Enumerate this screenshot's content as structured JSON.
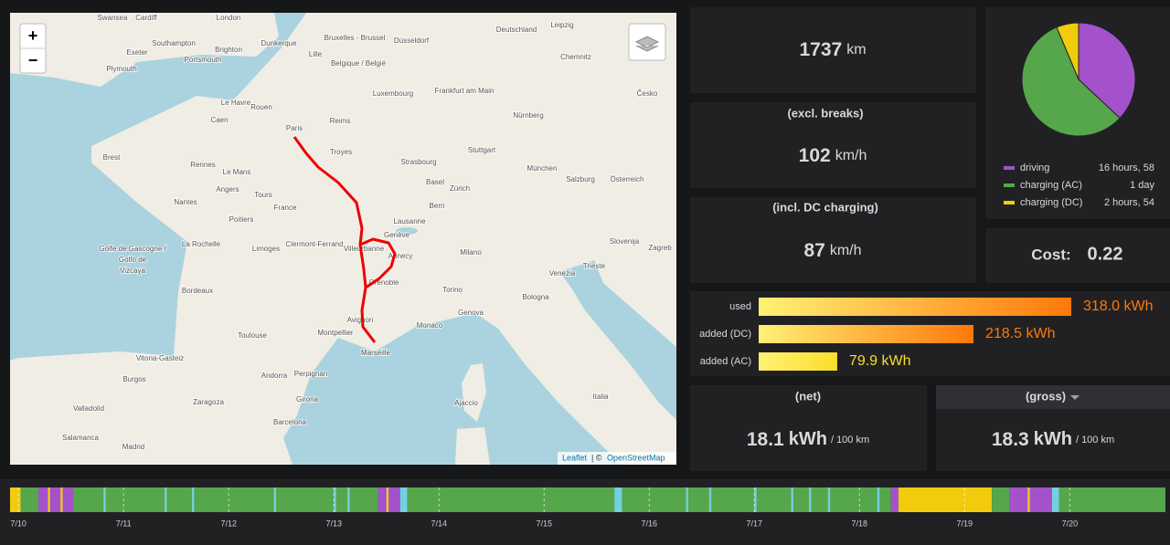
{
  "map": {
    "zoom_in": "+",
    "zoom_out": "−",
    "attribution": [
      "Leaflet",
      "| ©",
      "OpenStreetMap"
    ],
    "labels": [
      "Swansea",
      "Cardiff",
      "London",
      "Exeter",
      "Southampton",
      "Brighton",
      "Portsmouth",
      "Plymouth",
      "Dunkerque",
      "Lille",
      "Bruxelles - Brussel",
      "Belgique / België",
      "Düsseldorf",
      "Deutschland",
      "Leipzig",
      "Chemnitz",
      "Frankfurt am Main",
      "Luxembourg",
      "Nürnberg",
      "Česko",
      "Stuttgart",
      "Strasbourg",
      "München",
      "Salzburg",
      "Österreich",
      "Le Havre",
      "Rouen",
      "Caen",
      "Paris",
      "Reims",
      "Troyes",
      "Brest",
      "Rennes",
      "Le Mans",
      "Angers",
      "Nantes",
      "Tours",
      "France",
      "Basel",
      "Zürich",
      "Bern",
      "Lausanne",
      "Genève",
      "Poitiers",
      "La Rochelle",
      "Limoges",
      "Clermont-Ferrand",
      "Villeurbanne",
      "Annecy",
      "Grenoble",
      "Milano",
      "Venezia",
      "Trieste",
      "Slovenija",
      "Zagreb",
      "Bordeaux",
      "Torino",
      "Genova",
      "Bologna",
      "Toulouse",
      "Montpellier",
      "Avignon",
      "Marseille",
      "Monaco",
      "Andorra",
      "Perpignan",
      "Girona",
      "Barcelona",
      "Zaragoza",
      "Vitoria-Gasteiz",
      "Burgos",
      "Valladolid",
      "Salamanca",
      "Madrid",
      "Ajaccio",
      "Italia",
      "Golfe de Gascogne /",
      "Golfo de",
      "Vizcaya"
    ]
  },
  "stats": [
    {
      "value": 1737,
      "unit": "km"
    },
    {
      "title": "(excl. breaks)",
      "value": 102,
      "unit": "km/h"
    },
    {
      "title": "(incl. DC charging)",
      "value": 87,
      "unit": "km/h"
    }
  ],
  "cost": {
    "label": "Cost:",
    "value": 0.22
  },
  "efficiency": [
    {
      "title": "(net)",
      "value": 18.1,
      "unit": "kWh",
      "suffix": "/ 100 km"
    },
    {
      "title": "(gross)",
      "value": 18.3,
      "unit": "kWh",
      "suffix": "/ 100 km"
    }
  ],
  "chart_data": [
    {
      "type": "pie",
      "series": [
        {
          "name": "driving",
          "color": "#a352cc",
          "values": [
            16.97
          ],
          "value_labels": [
            "16 hours, 58"
          ]
        },
        {
          "name": "charging (AC)",
          "color": "#56a64b",
          "values": [
            26
          ],
          "value_labels": [
            "1 day"
          ]
        },
        {
          "name": "charging (DC)",
          "color": "#f2cc0c",
          "values": [
            2.9
          ],
          "value_labels": [
            "2 hours, 54"
          ]
        }
      ]
    },
    {
      "type": "bar",
      "categories": [
        "used",
        "added (DC)",
        "added (AC)"
      ],
      "values": [
        318.0,
        218.5,
        79.9
      ],
      "value_labels": [
        "318.0 kWh",
        "218.5 kWh",
        "79.9 kWh"
      ],
      "colors": [
        "#ff780a",
        "#ff780a",
        "#fade2a"
      ],
      "xlim": [
        0,
        318
      ]
    },
    {
      "type": "state-timeline",
      "xlim": [
        9.92,
        20.91
      ],
      "xticks": [
        {
          "value": 10,
          "label": "7/10"
        },
        {
          "value": 11,
          "label": "7/11"
        },
        {
          "value": 12,
          "label": "7/12"
        },
        {
          "value": 13,
          "label": "7/13"
        },
        {
          "value": 14,
          "label": "7/14"
        },
        {
          "value": 15,
          "label": "7/15"
        },
        {
          "value": 16,
          "label": "7/16"
        },
        {
          "value": 17,
          "label": "7/17"
        },
        {
          "value": 18,
          "label": "7/18"
        },
        {
          "value": 19,
          "label": "7/19"
        },
        {
          "value": 20,
          "label": "7/20"
        }
      ],
      "segments": [
        {
          "start": 9.92,
          "end": 10.02,
          "color": "#f2cc0c"
        },
        {
          "start": 10.02,
          "end": 10.19,
          "color": "#56a64b"
        },
        {
          "start": 10.19,
          "end": 10.52,
          "color": "#a352cc"
        },
        {
          "start": 10.28,
          "end": 10.3,
          "color": "#f2cc0c"
        },
        {
          "start": 10.4,
          "end": 10.42,
          "color": "#f2cc0c"
        },
        {
          "start": 10.52,
          "end": 13.42,
          "color": "#56a64b"
        },
        {
          "start": 10.81,
          "end": 10.83,
          "color": "#73d0e0"
        },
        {
          "start": 11.39,
          "end": 11.41,
          "color": "#73d0e0"
        },
        {
          "start": 11.65,
          "end": 11.67,
          "color": "#73d0e0"
        },
        {
          "start": 12.43,
          "end": 12.45,
          "color": "#73d0e0"
        },
        {
          "start": 13.0,
          "end": 13.02,
          "color": "#73d0e0"
        },
        {
          "start": 13.13,
          "end": 13.15,
          "color": "#73d0e0"
        },
        {
          "start": 13.42,
          "end": 13.63,
          "color": "#a352cc"
        },
        {
          "start": 13.5,
          "end": 13.52,
          "color": "#f2cc0c"
        },
        {
          "start": 13.63,
          "end": 13.7,
          "color": "#73d0e0"
        },
        {
          "start": 13.7,
          "end": 18.3,
          "color": "#56a64b"
        },
        {
          "start": 15.67,
          "end": 15.74,
          "color": "#73d0e0"
        },
        {
          "start": 16.35,
          "end": 16.37,
          "color": "#73d0e0"
        },
        {
          "start": 16.57,
          "end": 16.59,
          "color": "#73d0e0"
        },
        {
          "start": 17.0,
          "end": 17.02,
          "color": "#73d0e0"
        },
        {
          "start": 17.35,
          "end": 17.37,
          "color": "#73d0e0"
        },
        {
          "start": 17.52,
          "end": 17.54,
          "color": "#73d0e0"
        },
        {
          "start": 17.7,
          "end": 17.72,
          "color": "#73d0e0"
        },
        {
          "start": 18.17,
          "end": 18.19,
          "color": "#73d0e0"
        },
        {
          "start": 18.3,
          "end": 18.37,
          "color": "#a352cc"
        },
        {
          "start": 18.37,
          "end": 19.26,
          "color": "#f2cc0c"
        },
        {
          "start": 19.26,
          "end": 19.43,
          "color": "#56a64b"
        },
        {
          "start": 19.43,
          "end": 19.83,
          "color": "#a352cc"
        },
        {
          "start": 19.6,
          "end": 19.62,
          "color": "#f2cc0c"
        },
        {
          "start": 19.83,
          "end": 19.9,
          "color": "#73d0e0"
        },
        {
          "start": 19.9,
          "end": 20.91,
          "color": "#56a64b"
        }
      ]
    }
  ]
}
